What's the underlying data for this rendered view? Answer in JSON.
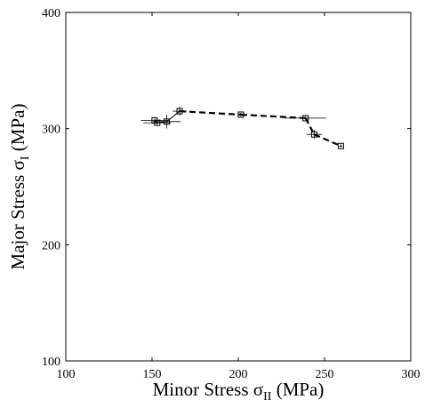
{
  "chart_data": {
    "type": "scatter",
    "title": "",
    "xlabel": {
      "prefix": "Minor Stress ",
      "symbol": "σ",
      "subscript": "II",
      "suffix": " (MPa)"
    },
    "ylabel": {
      "prefix": "Major Stress ",
      "symbol": "σ",
      "subscript": "I",
      "suffix": " (MPa)"
    },
    "xlim": [
      100,
      300
    ],
    "ylim": [
      100,
      400
    ],
    "xticks": [
      100,
      150,
      200,
      250,
      300
    ],
    "yticks": [
      100,
      200,
      300,
      400
    ],
    "grid": false,
    "marker": "square",
    "line_style": "dashed",
    "color": "#000000",
    "points": [
      {
        "x": 151.5,
        "y": 307.0,
        "xerr": 8.0,
        "yerr": 1.5
      },
      {
        "x": 153.0,
        "y": 305.0,
        "xerr": 8.0,
        "yerr": 2.0
      },
      {
        "x": 158.5,
        "y": 306.0,
        "xerr": 8.0,
        "yerr": 6.0
      },
      {
        "x": 166.0,
        "y": 315.0,
        "xerr": 4.0,
        "yerr": 4.0
      },
      {
        "x": 201.5,
        "y": 312.0,
        "xerr": 0.0,
        "yerr": 1.5
      },
      {
        "x": 239.0,
        "y": 309.0,
        "xerr": 12.0,
        "yerr": 1.5
      },
      {
        "x": 244.0,
        "y": 295.0,
        "xerr": 4.5,
        "yerr": 4.0
      },
      {
        "x": 259.5,
        "y": 285.0,
        "xerr": 1.0,
        "yerr": 1.5
      }
    ],
    "dashed_segments": [
      [
        3,
        4
      ],
      [
        4,
        5
      ],
      [
        5,
        6
      ],
      [
        6,
        7
      ]
    ],
    "solid_segments": [
      [
        0,
        1
      ],
      [
        1,
        2
      ],
      [
        2,
        3
      ]
    ]
  }
}
